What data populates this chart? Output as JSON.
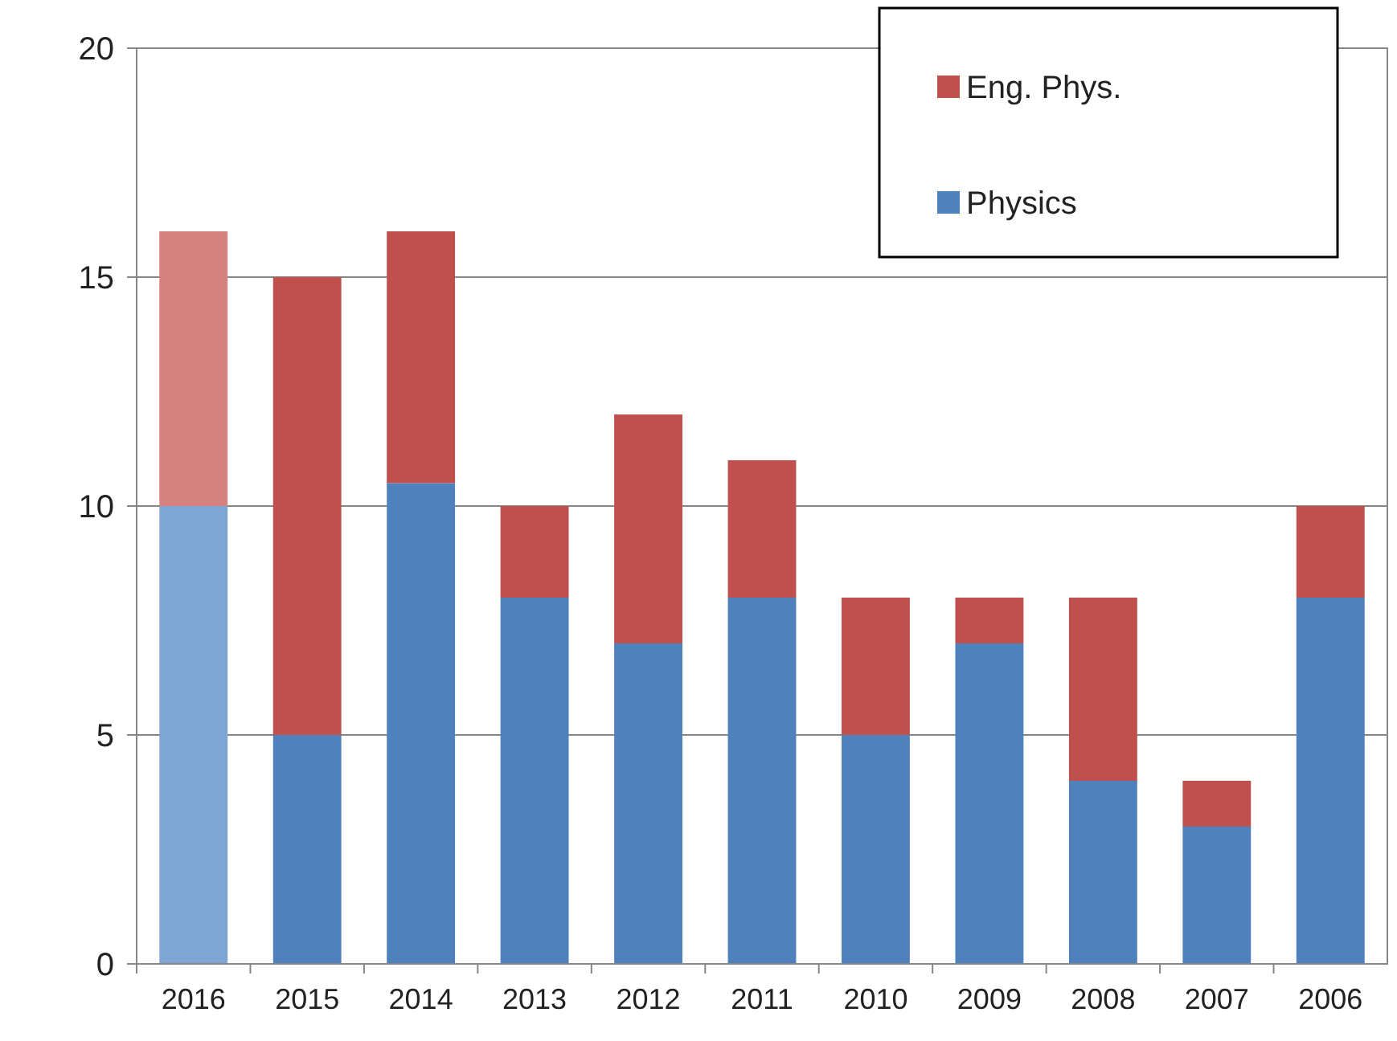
{
  "chart_data": {
    "type": "bar",
    "stacked": true,
    "categories": [
      "2016",
      "2015",
      "2014",
      "2013",
      "2012",
      "2011",
      "2010",
      "2009",
      "2008",
      "2007",
      "2006"
    ],
    "series": [
      {
        "name": "Physics",
        "color": "#4f81bd",
        "colors": [
          "#7fa5d4",
          "#4f81bd",
          "#4f81bd",
          "#4f81bd",
          "#4f81bd",
          "#4f81bd",
          "#4f81bd",
          "#4f81bd",
          "#4f81bd",
          "#4f81bd",
          "#4f81bd"
        ],
        "values": [
          10,
          5,
          10.5,
          8,
          7,
          8,
          5,
          7,
          4,
          3,
          8
        ]
      },
      {
        "name": "Eng. Phys.",
        "color": "#c0504d",
        "colors": [
          "#d68380",
          "#c0504d",
          "#c0504d",
          "#c0504d",
          "#c0504d",
          "#c0504d",
          "#c0504d",
          "#c0504d",
          "#c0504d",
          "#c0504d",
          "#c0504d"
        ],
        "values": [
          6,
          10,
          5.5,
          2,
          5,
          3,
          3,
          1,
          4,
          1,
          2
        ]
      }
    ],
    "ylim": [
      0,
      20
    ],
    "yticks": [
      0,
      5,
      10,
      15,
      20
    ],
    "grid": "y",
    "legend": "top right"
  }
}
